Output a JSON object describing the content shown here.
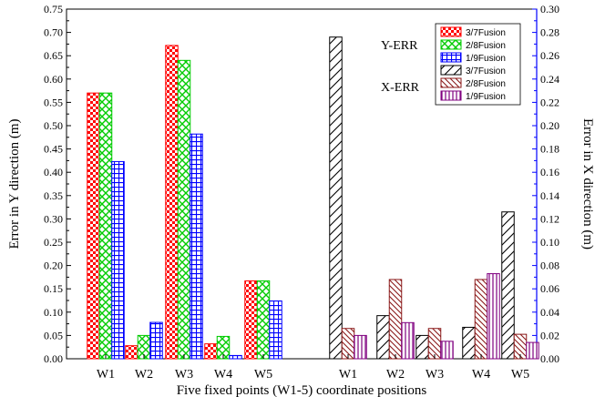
{
  "chart_data": {
    "type": "bar",
    "xlabel": "Five fixed points (W1-5) coordinate positions",
    "ylabel_left": "Error in Y direction (m)",
    "ylabel_right": "Error in X direction (m)",
    "ylim_left": [
      0,
      0.75
    ],
    "ylim_right": [
      0,
      0.3
    ],
    "yticks_left": [
      "0.00",
      "0.05",
      "0.10",
      "0.15",
      "0.20",
      "0.25",
      "0.30",
      "0.35",
      "0.40",
      "0.45",
      "0.50",
      "0.55",
      "0.60",
      "0.65",
      "0.70",
      "0.75"
    ],
    "yticks_right": [
      "0.00",
      "0.02",
      "0.04",
      "0.06",
      "0.08",
      "0.10",
      "0.12",
      "0.14",
      "0.16",
      "0.18",
      "0.20",
      "0.22",
      "0.24",
      "0.26",
      "0.28",
      "0.30"
    ],
    "group_labels": {
      "y_err": "Y-ERR",
      "x_err": "X-ERR"
    },
    "y_err": {
      "categories": [
        "W1",
        "W2",
        "W3",
        "W4",
        "W5"
      ],
      "series": [
        {
          "name": "3/7Fusion",
          "values": [
            0.57,
            0.028,
            0.672,
            0.032,
            0.167
          ],
          "color": "#ff0000",
          "pattern": "checker"
        },
        {
          "name": "2/8Fusion",
          "values": [
            0.57,
            0.05,
            0.64,
            0.048,
            0.167
          ],
          "color": "#00cc00",
          "pattern": "diamond"
        },
        {
          "name": "1/9Fusion",
          "values": [
            0.423,
            0.078,
            0.482,
            0.007,
            0.124
          ],
          "color": "#0000ff",
          "pattern": "grid"
        }
      ]
    },
    "x_err": {
      "categories": [
        "W1",
        "W2",
        "W3",
        "W4",
        "W5"
      ],
      "series": [
        {
          "name": "3/7Fusion",
          "values": [
            0.276,
            0.037,
            0.02,
            0.027,
            0.126
          ],
          "color": "#000000",
          "pattern": "diag-right"
        },
        {
          "name": "2/8Fusion",
          "values": [
            0.026,
            0.068,
            0.026,
            0.068,
            0.021
          ],
          "color": "#8b1a1a",
          "pattern": "diag-left"
        },
        {
          "name": "1/9Fusion",
          "values": [
            0.02,
            0.031,
            0.015,
            0.073,
            0.014
          ],
          "color": "#800080",
          "pattern": "vertical"
        }
      ]
    }
  }
}
